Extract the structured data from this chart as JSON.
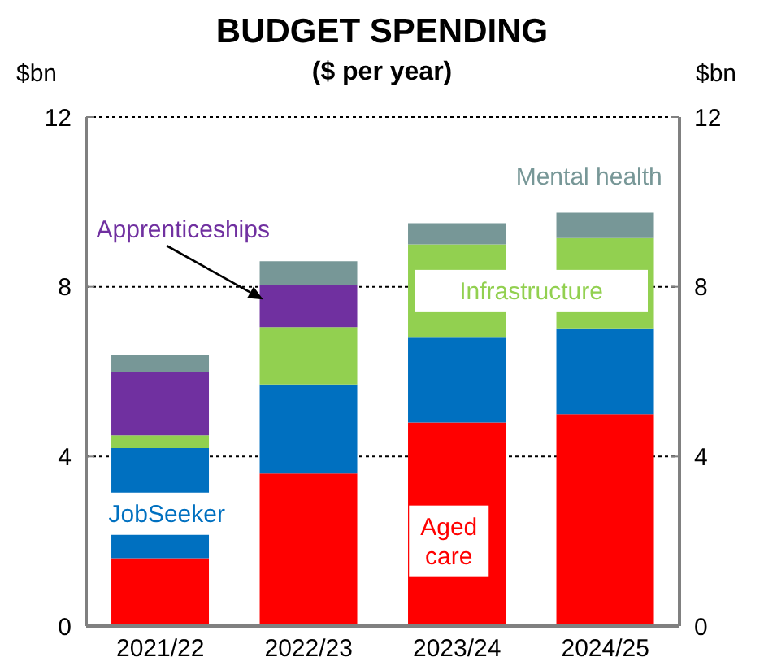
{
  "chart_data": {
    "type": "bar",
    "title": "BUDGET SPENDING",
    "subtitle": "($ per year)",
    "ylabel": "$bn",
    "y2label": "$bn",
    "stacked": true,
    "categories": [
      "2021/22",
      "2022/23",
      "2023/24",
      "2024/25"
    ],
    "series": [
      {
        "name": "Aged care",
        "color": "#ff0000",
        "values": [
          1.6,
          3.6,
          4.8,
          5.0
        ]
      },
      {
        "name": "JobSeeker",
        "color": "#0070c0",
        "values": [
          2.6,
          2.1,
          2.0,
          2.0
        ]
      },
      {
        "name": "Infrastructure",
        "color": "#92d050",
        "values": [
          0.3,
          1.35,
          2.2,
          2.15
        ]
      },
      {
        "name": "Apprenticeships",
        "color": "#7030a0",
        "values": [
          1.5,
          1.0,
          0,
          0
        ]
      },
      {
        "name": "Mental health",
        "color": "#779797",
        "values": [
          0.4,
          0.55,
          0.5,
          0.6
        ]
      }
    ],
    "ylim": [
      0,
      12
    ],
    "yticks": [
      0,
      4,
      8,
      12
    ],
    "y2lim": [
      0,
      12
    ],
    "y2ticks": [
      0,
      4,
      8,
      12
    ],
    "grid": "y",
    "legend": false
  }
}
